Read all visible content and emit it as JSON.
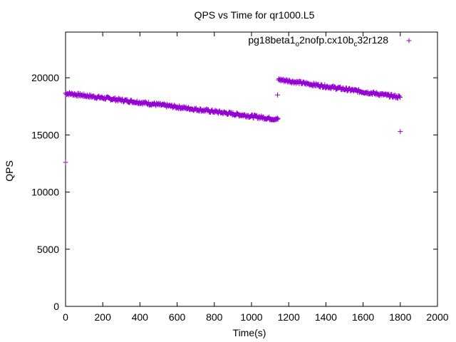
{
  "chart_data": {
    "type": "scatter",
    "title": "QPS vs Time for qr1000.L5",
    "xlabel": "Time(s)",
    "ylabel": "QPS",
    "xlim": [
      0,
      2000
    ],
    "ylim": [
      0,
      24000
    ],
    "x_ticks": [
      "0",
      "200",
      "400",
      "600",
      "800",
      "1000",
      "1200",
      "1400",
      "1600",
      "1800",
      "2000"
    ],
    "y_ticks": [
      "0",
      "5000",
      "10000",
      "15000",
      "20000"
    ],
    "legend_position": "top-right",
    "marker": "+",
    "color": "#9400d3",
    "series": [
      {
        "legend_parts": [
          {
            "t": "pg18beta1",
            "sub": false
          },
          {
            "t": "o",
            "sub": true
          },
          {
            "t": "2nofp.cx10b",
            "sub": false
          },
          {
            "t": "c",
            "sub": true
          },
          {
            "t": "32r128",
            "sub": false
          }
        ],
        "segments": [
          {
            "x_start": 0,
            "x_end": 1145,
            "y_start": 18650,
            "y_end": 16350
          },
          {
            "x_start": 1145,
            "x_end": 1800,
            "y_start": 19850,
            "y_end": 18300
          }
        ],
        "outliers": [
          {
            "x": 0,
            "y": 12600
          },
          {
            "x": 1140,
            "y": 18500
          },
          {
            "x": 1800,
            "y": 15300
          }
        ]
      }
    ]
  }
}
